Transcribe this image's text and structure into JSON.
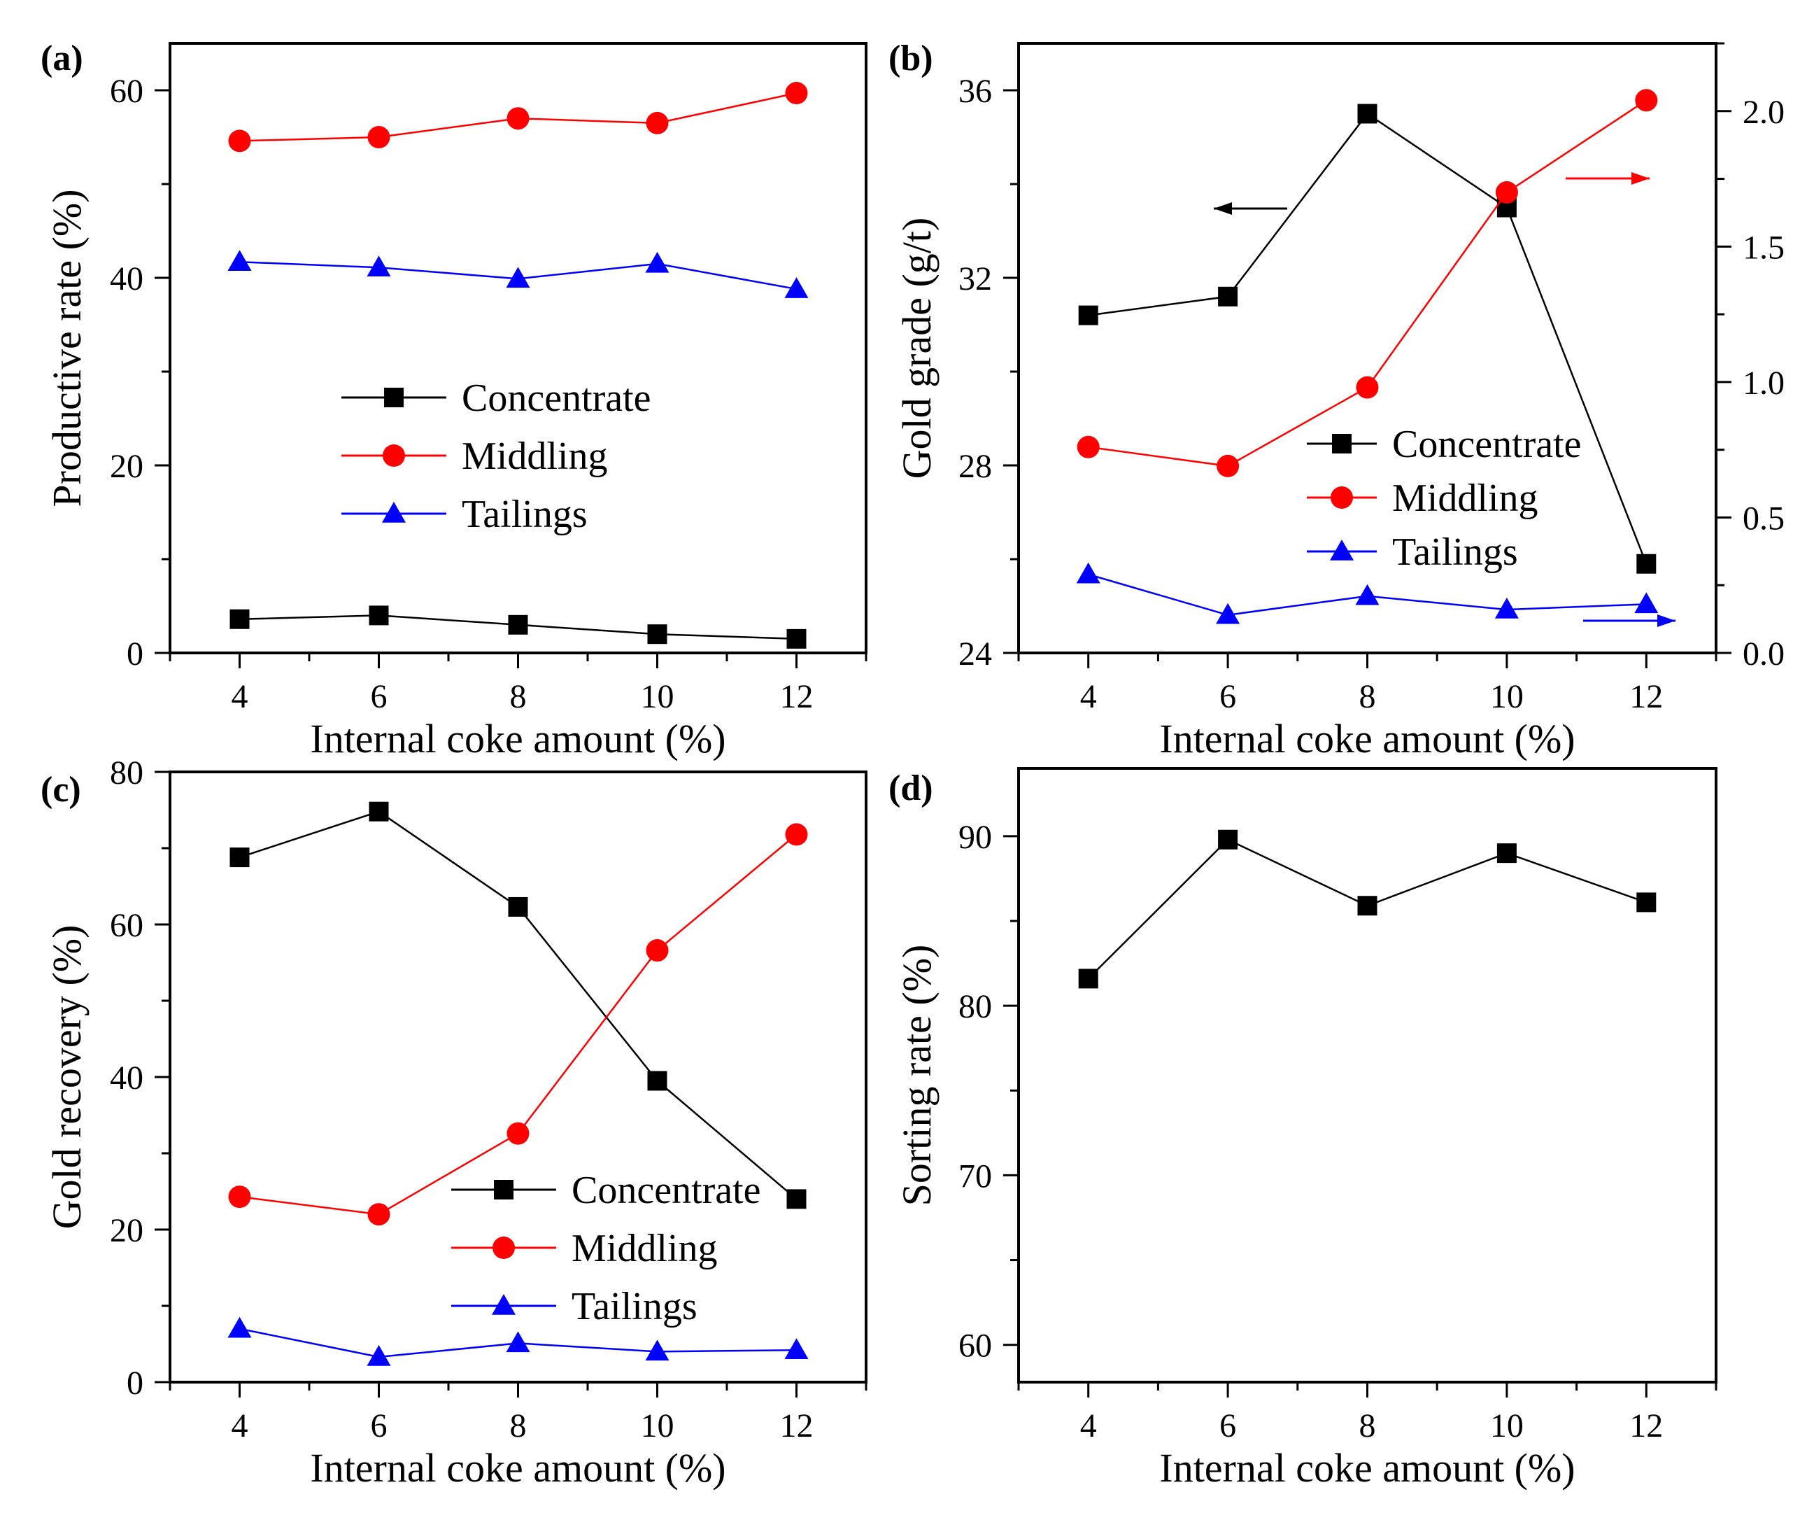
{
  "figure": {
    "panels": [
      "(a)",
      "(b)",
      "(c)",
      "(d)"
    ]
  },
  "chart_data": [
    {
      "id": "a",
      "panel_label": "(a)",
      "type": "line",
      "xlabel": "Internal coke amount (%)",
      "ylabel": "Productive rate (%)",
      "x": [
        4,
        6,
        8,
        10,
        12
      ],
      "xlim": [
        3,
        13
      ],
      "xticks": [
        4,
        6,
        8,
        10,
        12
      ],
      "ylim": [
        0,
        65
      ],
      "yticks": [
        0,
        20,
        40,
        60
      ],
      "legend": "center",
      "series": [
        {
          "name": "Concentrate",
          "color": "#000000",
          "marker": "square",
          "values": [
            3.6,
            4.0,
            3.0,
            2.0,
            1.5
          ]
        },
        {
          "name": "Middling",
          "color": "#ff0000",
          "marker": "circle",
          "values": [
            54.6,
            55.0,
            57.0,
            56.5,
            59.7
          ]
        },
        {
          "name": "Tailings",
          "color": "#0000ff",
          "marker": "triangle",
          "values": [
            41.7,
            41.1,
            39.9,
            41.5,
            38.8
          ]
        }
      ]
    },
    {
      "id": "b",
      "panel_label": "(b)",
      "type": "line",
      "xlabel": "Internal coke amount (%)",
      "ylabel": "Gold grade (g/t)",
      "x": [
        4,
        6,
        8,
        10,
        12
      ],
      "xlim": [
        3,
        13
      ],
      "xticks": [
        4,
        6,
        8,
        10,
        12
      ],
      "ylim": [
        24,
        37
      ],
      "yticks": [
        24,
        28,
        32,
        36
      ],
      "ylim_right": [
        0,
        2.25
      ],
      "yticks_right": [
        "0.0",
        "0.5",
        "1.0",
        "1.5",
        "2.0"
      ],
      "legend": "center-right",
      "series": [
        {
          "name": "Concentrate",
          "color": "#000000",
          "marker": "square",
          "axis": "left",
          "values": [
            31.2,
            31.6,
            35.5,
            33.5,
            25.9
          ]
        },
        {
          "name": "Middling",
          "color": "#ff0000",
          "marker": "circle",
          "axis": "right",
          "values": [
            0.76,
            0.69,
            0.98,
            1.7,
            2.04
          ]
        },
        {
          "name": "Tailings",
          "color": "#0000ff",
          "marker": "triangle",
          "axis": "right",
          "values": [
            0.29,
            0.14,
            0.21,
            0.16,
            0.18
          ]
        }
      ],
      "annotations": [
        {
          "type": "arrow",
          "points_to": "left-axis",
          "color": "#000000"
        },
        {
          "type": "arrow",
          "points_to": "right-axis",
          "color": "#ff0000"
        },
        {
          "type": "arrow",
          "points_to": "right-axis",
          "color": "#0000ff"
        }
      ]
    },
    {
      "id": "c",
      "panel_label": "(c)",
      "type": "line",
      "xlabel": "Internal coke amount (%)",
      "ylabel": "Gold recovery (%)",
      "x": [
        4,
        6,
        8,
        10,
        12
      ],
      "xlim": [
        3,
        13
      ],
      "xticks": [
        4,
        6,
        8,
        10,
        12
      ],
      "ylim": [
        0,
        80
      ],
      "yticks": [
        0,
        20,
        40,
        60,
        80
      ],
      "legend": "bottom-right",
      "series": [
        {
          "name": "Concentrate",
          "color": "#000000",
          "marker": "square",
          "values": [
            68.8,
            74.8,
            62.3,
            39.5,
            24.0
          ]
        },
        {
          "name": "Middling",
          "color": "#ff0000",
          "marker": "circle",
          "values": [
            24.3,
            22.0,
            32.6,
            56.6,
            71.8
          ]
        },
        {
          "name": "Tailings",
          "color": "#0000ff",
          "marker": "triangle",
          "values": [
            7.0,
            3.3,
            5.1,
            4.0,
            4.2
          ]
        }
      ]
    },
    {
      "id": "d",
      "panel_label": "(d)",
      "type": "line",
      "xlabel": "Internal coke amount (%)",
      "ylabel": "Sorting rate (%)",
      "x": [
        4,
        6,
        8,
        10,
        12
      ],
      "xlim": [
        3,
        13
      ],
      "xticks": [
        4,
        6,
        8,
        10,
        12
      ],
      "ylim": [
        57.8,
        94
      ],
      "yticks": [
        60,
        70,
        80,
        90
      ],
      "legend": "none",
      "series": [
        {
          "name": "Sorting rate",
          "color": "#000000",
          "marker": "square",
          "values": [
            81.6,
            89.8,
            85.9,
            89.0,
            86.1
          ]
        }
      ]
    }
  ]
}
